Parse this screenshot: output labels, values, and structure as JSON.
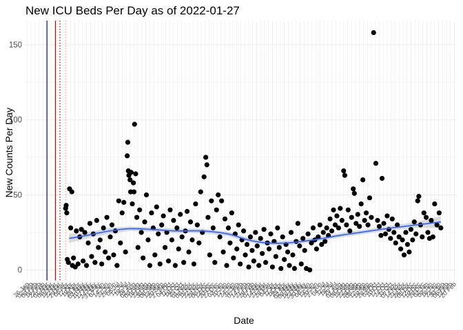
{
  "chart_data": {
    "type": "scatter",
    "title": "New ICU Beds Per Day as of 2022-01-27",
    "xlabel": "Date",
    "ylabel": "New Counts Per Day",
    "yticks": [
      0,
      50,
      100,
      150
    ],
    "ylim": [
      -7,
      166
    ],
    "xlim": [
      "2020-01-23",
      "2022-02-23"
    ],
    "grid": true,
    "point_color": "#000000",
    "smooth_color": "#3366ff",
    "ribbon_color": "#cccccc",
    "vlines": [
      {
        "date": "2020-03-01",
        "color": "#0000aa",
        "style": "solid"
      },
      {
        "date": "2020-03-16",
        "color": "#cc0000",
        "style": "solid"
      },
      {
        "date": "2020-03-24",
        "color": "#cc0000",
        "style": "dotted"
      },
      {
        "date": "2020-04-03",
        "color": "#ff9999",
        "style": "dotted"
      }
    ],
    "smooth": [
      {
        "x": "2020-04-09",
        "y": 21,
        "lo": 18,
        "hi": 24
      },
      {
        "x": "2020-05-10",
        "y": 23,
        "lo": 21,
        "hi": 25
      },
      {
        "x": "2020-06-20",
        "y": 26,
        "lo": 24,
        "hi": 28
      },
      {
        "x": "2020-07-25",
        "y": 27.5,
        "lo": 26,
        "hi": 29
      },
      {
        "x": "2020-09-01",
        "y": 27,
        "lo": 25.5,
        "hi": 28.5
      },
      {
        "x": "2020-10-15",
        "y": 26,
        "lo": 24.5,
        "hi": 27.5
      },
      {
        "x": "2020-12-01",
        "y": 26,
        "lo": 24.5,
        "hi": 27.5
      },
      {
        "x": "2021-01-15",
        "y": 24,
        "lo": 22.5,
        "hi": 25.5
      },
      {
        "x": "2021-02-20",
        "y": 20,
        "lo": 18.5,
        "hi": 21.5
      },
      {
        "x": "2021-03-25",
        "y": 18,
        "lo": 16.5,
        "hi": 19.5
      },
      {
        "x": "2021-05-01",
        "y": 18,
        "lo": 16.5,
        "hi": 19.5
      },
      {
        "x": "2021-06-15",
        "y": 20,
        "lo": 18.5,
        "hi": 21.5
      },
      {
        "x": "2021-08-01",
        "y": 23,
        "lo": 21.5,
        "hi": 24.5
      },
      {
        "x": "2021-09-15",
        "y": 25.5,
        "lo": 24,
        "hi": 27
      },
      {
        "x": "2021-11-01",
        "y": 28,
        "lo": 26.5,
        "hi": 29.5
      },
      {
        "x": "2021-12-15",
        "y": 30,
        "lo": 28,
        "hi": 32
      },
      {
        "x": "2022-01-27",
        "y": 32,
        "lo": 28,
        "hi": 36
      }
    ],
    "points": [
      {
        "x": "2020-04-03",
        "y": 41
      },
      {
        "x": "2020-04-04",
        "y": 43
      },
      {
        "x": "2020-04-05",
        "y": 38
      },
      {
        "x": "2020-04-06",
        "y": 7
      },
      {
        "x": "2020-04-08",
        "y": 5
      },
      {
        "x": "2020-04-10",
        "y": 54
      },
      {
        "x": "2020-04-12",
        "y": 28
      },
      {
        "x": "2020-04-14",
        "y": 52
      },
      {
        "x": "2020-04-15",
        "y": 3
      },
      {
        "x": "2020-04-17",
        "y": 8
      },
      {
        "x": "2020-04-20",
        "y": 2
      },
      {
        "x": "2020-04-22",
        "y": 26
      },
      {
        "x": "2020-04-25",
        "y": 4
      },
      {
        "x": "2020-04-28",
        "y": 22
      },
      {
        "x": "2020-05-01",
        "y": 27
      },
      {
        "x": "2020-05-04",
        "y": 6
      },
      {
        "x": "2020-05-07",
        "y": 25
      },
      {
        "x": "2020-05-10",
        "y": 3
      },
      {
        "x": "2020-05-13",
        "y": 18
      },
      {
        "x": "2020-05-16",
        "y": 31
      },
      {
        "x": "2020-05-19",
        "y": 9
      },
      {
        "x": "2020-05-22",
        "y": 24
      },
      {
        "x": "2020-05-25",
        "y": 5
      },
      {
        "x": "2020-05-28",
        "y": 33
      },
      {
        "x": "2020-05-31",
        "y": 15
      },
      {
        "x": "2020-06-03",
        "y": 20
      },
      {
        "x": "2020-06-06",
        "y": 4
      },
      {
        "x": "2020-06-09",
        "y": 28
      },
      {
        "x": "2020-06-12",
        "y": 12
      },
      {
        "x": "2020-06-15",
        "y": 35
      },
      {
        "x": "2020-06-18",
        "y": 8
      },
      {
        "x": "2020-06-21",
        "y": 22
      },
      {
        "x": "2020-06-24",
        "y": 30
      },
      {
        "x": "2020-06-27",
        "y": 10
      },
      {
        "x": "2020-06-30",
        "y": 26
      },
      {
        "x": "2020-07-03",
        "y": 3
      },
      {
        "x": "2020-07-06",
        "y": 46
      },
      {
        "x": "2020-07-09",
        "y": 18
      },
      {
        "x": "2020-07-12",
        "y": 38
      },
      {
        "x": "2020-07-15",
        "y": 45
      },
      {
        "x": "2020-07-18",
        "y": 12
      },
      {
        "x": "2020-07-21",
        "y": 76
      },
      {
        "x": "2020-07-22",
        "y": 85
      },
      {
        "x": "2020-07-23",
        "y": 66
      },
      {
        "x": "2020-07-24",
        "y": 63
      },
      {
        "x": "2020-07-26",
        "y": 60
      },
      {
        "x": "2020-07-27",
        "y": 52
      },
      {
        "x": "2020-07-28",
        "y": 65
      },
      {
        "x": "2020-07-30",
        "y": 44
      },
      {
        "x": "2020-08-01",
        "y": 58
      },
      {
        "x": "2020-08-02",
        "y": 52
      },
      {
        "x": "2020-08-03",
        "y": 97
      },
      {
        "x": "2020-08-05",
        "y": 64
      },
      {
        "x": "2020-08-07",
        "y": 35
      },
      {
        "x": "2020-08-09",
        "y": 15
      },
      {
        "x": "2020-08-12",
        "y": 40
      },
      {
        "x": "2020-08-15",
        "y": 25
      },
      {
        "x": "2020-08-18",
        "y": 8
      },
      {
        "x": "2020-08-21",
        "y": 32
      },
      {
        "x": "2020-08-24",
        "y": 50
      },
      {
        "x": "2020-08-27",
        "y": 20
      },
      {
        "x": "2020-08-30",
        "y": 3
      },
      {
        "x": "2020-09-02",
        "y": 38
      },
      {
        "x": "2020-09-05",
        "y": 28
      },
      {
        "x": "2020-09-08",
        "y": 10
      },
      {
        "x": "2020-09-11",
        "y": 42
      },
      {
        "x": "2020-09-14",
        "y": 24
      },
      {
        "x": "2020-09-17",
        "y": 4
      },
      {
        "x": "2020-09-20",
        "y": 30
      },
      {
        "x": "2020-09-23",
        "y": 36
      },
      {
        "x": "2020-09-26",
        "y": 15
      },
      {
        "x": "2020-09-29",
        "y": 25
      },
      {
        "x": "2020-10-02",
        "y": 6
      },
      {
        "x": "2020-10-05",
        "y": 40
      },
      {
        "x": "2020-10-08",
        "y": 20
      },
      {
        "x": "2020-10-11",
        "y": 33
      },
      {
        "x": "2020-10-14",
        "y": 3
      },
      {
        "x": "2020-10-17",
        "y": 28
      },
      {
        "x": "2020-10-20",
        "y": 14
      },
      {
        "x": "2020-10-23",
        "y": 37
      },
      {
        "x": "2020-10-26",
        "y": 22
      },
      {
        "x": "2020-10-29",
        "y": 5
      },
      {
        "x": "2020-11-01",
        "y": 26
      },
      {
        "x": "2020-11-04",
        "y": 39
      },
      {
        "x": "2020-11-07",
        "y": 12
      },
      {
        "x": "2020-11-10",
        "y": 32
      },
      {
        "x": "2020-11-13",
        "y": 20
      },
      {
        "x": "2020-11-16",
        "y": 4
      },
      {
        "x": "2020-11-19",
        "y": 44
      },
      {
        "x": "2020-11-22",
        "y": 30
      },
      {
        "x": "2020-11-25",
        "y": 18
      },
      {
        "x": "2020-11-28",
        "y": 52
      },
      {
        "x": "2020-12-01",
        "y": 25
      },
      {
        "x": "2020-12-04",
        "y": 62
      },
      {
        "x": "2020-12-07",
        "y": 75
      },
      {
        "x": "2020-12-09",
        "y": 70
      },
      {
        "x": "2020-12-11",
        "y": 35
      },
      {
        "x": "2020-12-14",
        "y": 10
      },
      {
        "x": "2020-12-17",
        "y": 46
      },
      {
        "x": "2020-12-20",
        "y": 28
      },
      {
        "x": "2020-12-23",
        "y": 5
      },
      {
        "x": "2020-12-26",
        "y": 40
      },
      {
        "x": "2020-12-29",
        "y": 50
      },
      {
        "x": "2021-01-01",
        "y": 22
      },
      {
        "x": "2021-01-04",
        "y": 46
      },
      {
        "x": "2021-01-07",
        "y": 12
      },
      {
        "x": "2021-01-10",
        "y": 34
      },
      {
        "x": "2021-01-13",
        "y": 3
      },
      {
        "x": "2021-01-16",
        "y": 28
      },
      {
        "x": "2021-01-19",
        "y": 18
      },
      {
        "x": "2021-01-22",
        "y": 38
      },
      {
        "x": "2021-01-25",
        "y": 8
      },
      {
        "x": "2021-01-28",
        "y": 24
      },
      {
        "x": "2021-01-31",
        "y": 14
      },
      {
        "x": "2021-02-03",
        "y": 30
      },
      {
        "x": "2021-02-06",
        "y": 4
      },
      {
        "x": "2021-02-09",
        "y": 20
      },
      {
        "x": "2021-02-12",
        "y": 26
      },
      {
        "x": "2021-02-15",
        "y": 10
      },
      {
        "x": "2021-02-18",
        "y": 17
      },
      {
        "x": "2021-02-21",
        "y": 2
      },
      {
        "x": "2021-02-24",
        "y": 22
      },
      {
        "x": "2021-02-27",
        "y": 13
      },
      {
        "x": "2021-03-02",
        "y": 6
      },
      {
        "x": "2021-03-05",
        "y": 25
      },
      {
        "x": "2021-03-08",
        "y": 16
      },
      {
        "x": "2021-03-11",
        "y": 3
      },
      {
        "x": "2021-03-14",
        "y": 21
      },
      {
        "x": "2021-03-17",
        "y": 11
      },
      {
        "x": "2021-03-20",
        "y": 27
      },
      {
        "x": "2021-03-23",
        "y": 5
      },
      {
        "x": "2021-03-26",
        "y": 18
      },
      {
        "x": "2021-03-29",
        "y": 14
      },
      {
        "x": "2021-04-01",
        "y": 24
      },
      {
        "x": "2021-04-04",
        "y": 2
      },
      {
        "x": "2021-04-07",
        "y": 19
      },
      {
        "x": "2021-04-10",
        "y": 9
      },
      {
        "x": "2021-04-13",
        "y": 28
      },
      {
        "x": "2021-04-16",
        "y": 15
      },
      {
        "x": "2021-04-19",
        "y": 1
      },
      {
        "x": "2021-04-22",
        "y": 22
      },
      {
        "x": "2021-04-25",
        "y": 7
      },
      {
        "x": "2021-04-28",
        "y": 17
      },
      {
        "x": "2021-05-01",
        "y": 12
      },
      {
        "x": "2021-05-04",
        "y": 3
      },
      {
        "x": "2021-05-07",
        "y": 25
      },
      {
        "x": "2021-05-10",
        "y": 10
      },
      {
        "x": "2021-05-13",
        "y": 1
      },
      {
        "x": "2021-05-16",
        "y": 19
      },
      {
        "x": "2021-05-19",
        "y": 31
      },
      {
        "x": "2021-05-22",
        "y": 16
      },
      {
        "x": "2021-05-25",
        "y": 4
      },
      {
        "x": "2021-05-28",
        "y": 21
      },
      {
        "x": "2021-05-31",
        "y": 13
      },
      {
        "x": "2021-06-03",
        "y": 1
      },
      {
        "x": "2021-06-06",
        "y": 24
      },
      {
        "x": "2021-06-09",
        "y": 0
      },
      {
        "x": "2021-06-12",
        "y": 18
      },
      {
        "x": "2021-06-15",
        "y": 28
      },
      {
        "x": "2021-06-18",
        "y": 20
      },
      {
        "x": "2021-06-21",
        "y": 14
      },
      {
        "x": "2021-06-24",
        "y": 22
      },
      {
        "x": "2021-06-27",
        "y": 30
      },
      {
        "x": "2021-06-30",
        "y": 17
      },
      {
        "x": "2021-07-03",
        "y": 25
      },
      {
        "x": "2021-07-06",
        "y": 19
      },
      {
        "x": "2021-07-09",
        "y": 28
      },
      {
        "x": "2021-07-12",
        "y": 23
      },
      {
        "x": "2021-07-15",
        "y": 34
      },
      {
        "x": "2021-07-18",
        "y": 26
      },
      {
        "x": "2021-07-21",
        "y": 40
      },
      {
        "x": "2021-07-24",
        "y": 30
      },
      {
        "x": "2021-07-27",
        "y": 36
      },
      {
        "x": "2021-07-30",
        "y": 28
      },
      {
        "x": "2021-08-02",
        "y": 41
      },
      {
        "x": "2021-08-05",
        "y": 33
      },
      {
        "x": "2021-08-08",
        "y": 66
      },
      {
        "x": "2021-08-10",
        "y": 63
      },
      {
        "x": "2021-08-13",
        "y": 30
      },
      {
        "x": "2021-08-16",
        "y": 40
      },
      {
        "x": "2021-08-19",
        "y": 26
      },
      {
        "x": "2021-08-22",
        "y": 35
      },
      {
        "x": "2021-08-25",
        "y": 54
      },
      {
        "x": "2021-08-27",
        "y": 51
      },
      {
        "x": "2021-08-30",
        "y": 31
      },
      {
        "x": "2021-09-02",
        "y": 37
      },
      {
        "x": "2021-09-05",
        "y": 29
      },
      {
        "x": "2021-09-08",
        "y": 44
      },
      {
        "x": "2021-09-11",
        "y": 60
      },
      {
        "x": "2021-09-14",
        "y": 33
      },
      {
        "x": "2021-09-17",
        "y": 38
      },
      {
        "x": "2021-09-20",
        "y": 30
      },
      {
        "x": "2021-09-23",
        "y": 48
      },
      {
        "x": "2021-09-26",
        "y": 35
      },
      {
        "x": "2021-09-30",
        "y": 158
      },
      {
        "x": "2021-10-04",
        "y": 71
      },
      {
        "x": "2021-10-07",
        "y": 33
      },
      {
        "x": "2021-10-10",
        "y": 29
      },
      {
        "x": "2021-10-13",
        "y": 23
      },
      {
        "x": "2021-10-15",
        "y": 61
      },
      {
        "x": "2021-10-18",
        "y": 31
      },
      {
        "x": "2021-10-21",
        "y": 24
      },
      {
        "x": "2021-10-24",
        "y": 36
      },
      {
        "x": "2021-10-27",
        "y": 27
      },
      {
        "x": "2021-10-30",
        "y": 21
      },
      {
        "x": "2021-11-02",
        "y": 34
      },
      {
        "x": "2021-11-05",
        "y": 25
      },
      {
        "x": "2021-11-08",
        "y": 18
      },
      {
        "x": "2021-11-11",
        "y": 30
      },
      {
        "x": "2021-11-14",
        "y": 22
      },
      {
        "x": "2021-11-17",
        "y": 14
      },
      {
        "x": "2021-11-20",
        "y": 20
      },
      {
        "x": "2021-11-23",
        "y": 10
      },
      {
        "x": "2021-11-26",
        "y": 25
      },
      {
        "x": "2021-11-29",
        "y": 17
      },
      {
        "x": "2021-12-02",
        "y": 12
      },
      {
        "x": "2021-12-05",
        "y": 27
      },
      {
        "x": "2021-12-08",
        "y": 20
      },
      {
        "x": "2021-12-11",
        "y": 32
      },
      {
        "x": "2021-12-14",
        "y": 24
      },
      {
        "x": "2021-12-17",
        "y": 46
      },
      {
        "x": "2021-12-19",
        "y": 49
      },
      {
        "x": "2021-12-22",
        "y": 30
      },
      {
        "x": "2021-12-25",
        "y": 22
      },
      {
        "x": "2021-12-28",
        "y": 38
      },
      {
        "x": "2022-01-01",
        "y": 35
      },
      {
        "x": "2022-01-04",
        "y": 25
      },
      {
        "x": "2022-01-07",
        "y": 21
      },
      {
        "x": "2022-01-10",
        "y": 33
      },
      {
        "x": "2022-01-13",
        "y": 22
      },
      {
        "x": "2022-01-16",
        "y": 44
      },
      {
        "x": "2022-01-20",
        "y": 30
      },
      {
        "x": "2022-01-24",
        "y": 38
      },
      {
        "x": "2022-01-27",
        "y": 28
      }
    ]
  }
}
